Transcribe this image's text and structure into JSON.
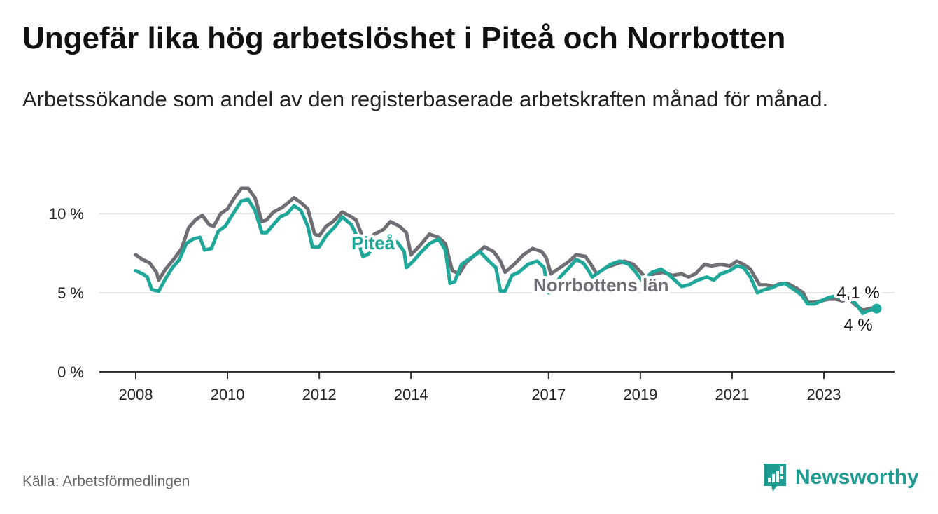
{
  "header": {
    "title": "Ungefär lika hög arbetslöshet i Piteå och Norrbotten",
    "subtitle": "Arbetssökande som andel av den registerbaserade arbetskraften månad för månad."
  },
  "footer": {
    "source": "Källa: Arbetsförmedlingen",
    "brand": "Newsworthy"
  },
  "colors": {
    "pitea": "#1fa89a",
    "norrbotten": "#6f6e74",
    "grid": "#dddddd",
    "axis": "#333333",
    "brand": "#1f9c91"
  },
  "chart_data": {
    "type": "line",
    "title": "Ungefär lika hög arbetslöshet i Piteå och Norrbotten",
    "xlabel": "",
    "ylabel": "",
    "ylim": [
      0,
      12
    ],
    "y_ticks": [
      0,
      5,
      10
    ],
    "y_tick_labels": [
      "0 %",
      "5 %",
      "10 %"
    ],
    "x_ticks": [
      2008,
      2010,
      2012,
      2014,
      2017,
      2019,
      2021,
      2023
    ],
    "x_tick_labels": [
      "2008",
      "2010",
      "2012",
      "2014",
      "2017",
      "2019",
      "2021",
      "2023"
    ],
    "x_range": [
      2008,
      2024.5
    ],
    "grid": "horizontal",
    "series": [
      {
        "name": "Norrbottens län",
        "label": "Norrbottens län",
        "end_label": "4,1 %",
        "points": [
          [
            2008.0,
            7.4
          ],
          [
            2008.15,
            7.1
          ],
          [
            2008.3,
            6.9
          ],
          [
            2008.45,
            6.3
          ],
          [
            2008.5,
            5.8
          ],
          [
            2008.65,
            6.5
          ],
          [
            2008.85,
            7.2
          ],
          [
            2009.0,
            7.8
          ],
          [
            2009.15,
            9.1
          ],
          [
            2009.3,
            9.6
          ],
          [
            2009.45,
            9.9
          ],
          [
            2009.6,
            9.3
          ],
          [
            2009.7,
            9.2
          ],
          [
            2009.85,
            10.0
          ],
          [
            2010.0,
            10.3
          ],
          [
            2010.15,
            11.0
          ],
          [
            2010.3,
            11.6
          ],
          [
            2010.45,
            11.6
          ],
          [
            2010.6,
            11.0
          ],
          [
            2010.75,
            9.5
          ],
          [
            2010.85,
            9.6
          ],
          [
            2011.0,
            10.1
          ],
          [
            2011.2,
            10.4
          ],
          [
            2011.45,
            11.0
          ],
          [
            2011.6,
            10.7
          ],
          [
            2011.75,
            10.3
          ],
          [
            2011.9,
            8.7
          ],
          [
            2012.0,
            8.6
          ],
          [
            2012.15,
            9.2
          ],
          [
            2012.3,
            9.5
          ],
          [
            2012.5,
            10.1
          ],
          [
            2012.7,
            9.8
          ],
          [
            2012.8,
            9.6
          ],
          [
            2012.95,
            8.5
          ],
          [
            2013.05,
            8.1
          ],
          [
            2013.2,
            8.7
          ],
          [
            2013.4,
            9.0
          ],
          [
            2013.55,
            9.5
          ],
          [
            2013.75,
            9.2
          ],
          [
            2013.9,
            8.8
          ],
          [
            2014.0,
            7.4
          ],
          [
            2014.2,
            8.0
          ],
          [
            2014.4,
            8.7
          ],
          [
            2014.6,
            8.5
          ],
          [
            2014.75,
            8.1
          ],
          [
            2014.9,
            6.4
          ],
          [
            2015.05,
            6.2
          ],
          [
            2015.2,
            6.9
          ],
          [
            2015.4,
            7.4
          ],
          [
            2015.6,
            7.9
          ],
          [
            2015.8,
            7.6
          ],
          [
            2015.95,
            7.0
          ],
          [
            2016.05,
            6.3
          ],
          [
            2016.25,
            6.8
          ],
          [
            2016.45,
            7.4
          ],
          [
            2016.65,
            7.8
          ],
          [
            2016.85,
            7.6
          ],
          [
            2016.95,
            7.2
          ],
          [
            2017.05,
            6.2
          ],
          [
            2017.25,
            6.6
          ],
          [
            2017.45,
            7.0
          ],
          [
            2017.6,
            7.4
          ],
          [
            2017.8,
            7.3
          ],
          [
            2017.9,
            6.9
          ],
          [
            2018.05,
            6.2
          ],
          [
            2018.25,
            6.6
          ],
          [
            2018.45,
            6.8
          ],
          [
            2018.65,
            7.0
          ],
          [
            2018.85,
            6.8
          ],
          [
            2018.95,
            6.5
          ],
          [
            2019.1,
            6.0
          ],
          [
            2019.3,
            6.2
          ],
          [
            2019.5,
            6.3
          ],
          [
            2019.7,
            6.1
          ],
          [
            2019.9,
            6.2
          ],
          [
            2020.05,
            6.0
          ],
          [
            2020.2,
            6.2
          ],
          [
            2020.4,
            6.8
          ],
          [
            2020.55,
            6.7
          ],
          [
            2020.75,
            6.8
          ],
          [
            2020.95,
            6.7
          ],
          [
            2021.1,
            7.0
          ],
          [
            2021.25,
            6.8
          ],
          [
            2021.4,
            6.5
          ],
          [
            2021.6,
            5.5
          ],
          [
            2021.75,
            5.5
          ],
          [
            2021.9,
            5.4
          ],
          [
            2022.05,
            5.6
          ],
          [
            2022.2,
            5.6
          ],
          [
            2022.4,
            5.3
          ],
          [
            2022.55,
            5.0
          ],
          [
            2022.65,
            4.4
          ],
          [
            2022.8,
            4.4
          ],
          [
            2022.95,
            4.5
          ],
          [
            2023.1,
            4.6
          ],
          [
            2023.25,
            4.6
          ],
          [
            2023.4,
            4.5
          ],
          [
            2023.55,
            4.6
          ],
          [
            2023.7,
            4.2
          ],
          [
            2023.85,
            3.9
          ],
          [
            2024.0,
            4.0
          ],
          [
            2024.15,
            4.1
          ]
        ]
      },
      {
        "name": "Piteå",
        "label": "Piteå",
        "end_label": "4 %",
        "points": [
          [
            2008.0,
            6.4
          ],
          [
            2008.15,
            6.2
          ],
          [
            2008.25,
            6.0
          ],
          [
            2008.35,
            5.2
          ],
          [
            2008.5,
            5.1
          ],
          [
            2008.65,
            5.9
          ],
          [
            2008.8,
            6.6
          ],
          [
            2008.95,
            7.1
          ],
          [
            2009.1,
            8.1
          ],
          [
            2009.25,
            8.4
          ],
          [
            2009.4,
            8.5
          ],
          [
            2009.5,
            7.7
          ],
          [
            2009.65,
            7.8
          ],
          [
            2009.8,
            8.9
          ],
          [
            2009.95,
            9.2
          ],
          [
            2010.1,
            9.9
          ],
          [
            2010.3,
            10.8
          ],
          [
            2010.45,
            10.9
          ],
          [
            2010.6,
            10.2
          ],
          [
            2010.75,
            8.8
          ],
          [
            2010.85,
            8.8
          ],
          [
            2011.0,
            9.3
          ],
          [
            2011.15,
            9.8
          ],
          [
            2011.3,
            10.0
          ],
          [
            2011.45,
            10.5
          ],
          [
            2011.6,
            10.2
          ],
          [
            2011.75,
            9.2
          ],
          [
            2011.85,
            7.9
          ],
          [
            2012.0,
            7.9
          ],
          [
            2012.15,
            8.6
          ],
          [
            2012.35,
            9.2
          ],
          [
            2012.5,
            9.8
          ],
          [
            2012.7,
            9.3
          ],
          [
            2012.8,
            8.7
          ],
          [
            2012.95,
            7.3
          ],
          [
            2013.05,
            7.4
          ],
          [
            2013.2,
            7.9
          ],
          [
            2013.4,
            8.0
          ],
          [
            2013.55,
            8.3
          ],
          [
            2013.7,
            8.2
          ],
          [
            2013.85,
            7.6
          ],
          [
            2013.9,
            6.6
          ],
          [
            2014.05,
            7.0
          ],
          [
            2014.2,
            7.5
          ],
          [
            2014.4,
            8.1
          ],
          [
            2014.6,
            8.4
          ],
          [
            2014.75,
            7.7
          ],
          [
            2014.85,
            5.6
          ],
          [
            2014.95,
            5.7
          ],
          [
            2015.1,
            6.8
          ],
          [
            2015.3,
            7.2
          ],
          [
            2015.5,
            7.6
          ],
          [
            2015.7,
            7.0
          ],
          [
            2015.85,
            6.6
          ],
          [
            2015.95,
            5.1
          ],
          [
            2016.05,
            5.1
          ],
          [
            2016.2,
            6.1
          ],
          [
            2016.35,
            6.3
          ],
          [
            2016.55,
            6.8
          ],
          [
            2016.75,
            7.0
          ],
          [
            2016.9,
            6.6
          ],
          [
            2017.0,
            5.0
          ],
          [
            2017.1,
            5.1
          ],
          [
            2017.25,
            6.0
          ],
          [
            2017.45,
            6.6
          ],
          [
            2017.6,
            7.1
          ],
          [
            2017.75,
            6.9
          ],
          [
            2017.85,
            6.5
          ],
          [
            2017.95,
            6.0
          ],
          [
            2018.15,
            6.4
          ],
          [
            2018.35,
            6.8
          ],
          [
            2018.55,
            7.0
          ],
          [
            2018.75,
            6.8
          ],
          [
            2018.9,
            6.3
          ],
          [
            2019.05,
            5.7
          ],
          [
            2019.25,
            6.3
          ],
          [
            2019.45,
            6.5
          ],
          [
            2019.6,
            6.2
          ],
          [
            2019.75,
            5.8
          ],
          [
            2019.9,
            5.4
          ],
          [
            2020.05,
            5.5
          ],
          [
            2020.25,
            5.8
          ],
          [
            2020.45,
            6.0
          ],
          [
            2020.6,
            5.8
          ],
          [
            2020.75,
            6.2
          ],
          [
            2020.95,
            6.4
          ],
          [
            2021.1,
            6.7
          ],
          [
            2021.25,
            6.6
          ],
          [
            2021.4,
            6.0
          ],
          [
            2021.55,
            5.0
          ],
          [
            2021.7,
            5.2
          ],
          [
            2021.85,
            5.3
          ],
          [
            2022.0,
            5.5
          ],
          [
            2022.15,
            5.6
          ],
          [
            2022.35,
            5.2
          ],
          [
            2022.5,
            4.9
          ],
          [
            2022.65,
            4.3
          ],
          [
            2022.8,
            4.3
          ],
          [
            2022.95,
            4.5
          ],
          [
            2023.1,
            4.7
          ],
          [
            2023.25,
            4.8
          ],
          [
            2023.4,
            4.6
          ],
          [
            2023.55,
            4.7
          ],
          [
            2023.7,
            4.3
          ],
          [
            2023.85,
            3.7
          ],
          [
            2024.0,
            3.9
          ],
          [
            2024.15,
            4.0
          ]
        ]
      }
    ]
  }
}
